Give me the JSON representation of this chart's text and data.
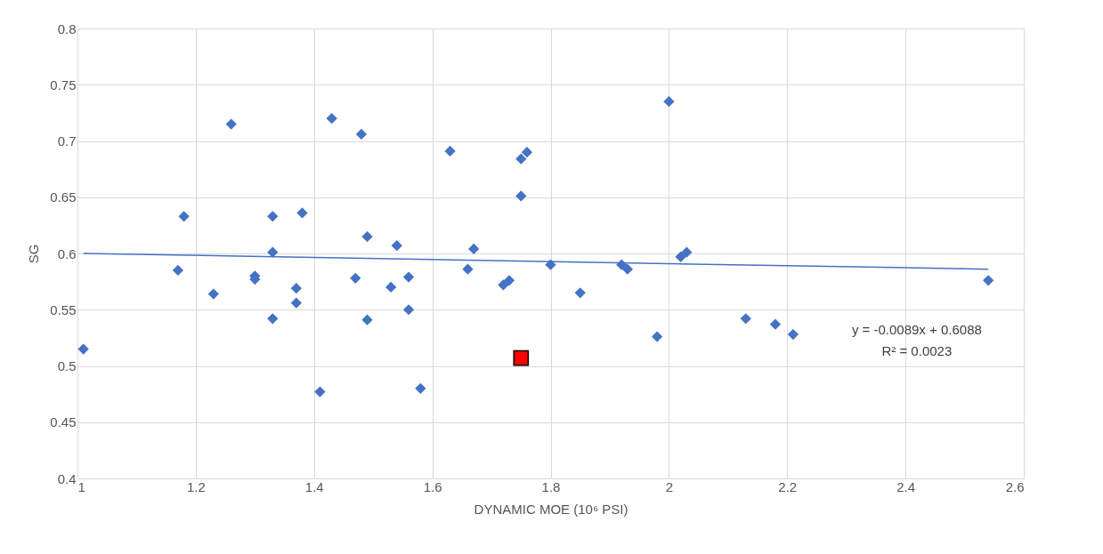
{
  "chart_data": {
    "type": "scatter",
    "xlabel": "DYNAMIC MOE (10⁶ PSI)",
    "ylabel": "SG",
    "xlim": [
      1,
      2.6
    ],
    "xticks": [
      1,
      1.2,
      1.4,
      1.6,
      1.8,
      2,
      2.2,
      2.4,
      2.6
    ],
    "ylim": [
      0.4,
      0.8
    ],
    "yticks": [
      0.4,
      0.45,
      0.5,
      0.55,
      0.6,
      0.65,
      0.7,
      0.75,
      0.8
    ],
    "grid": true,
    "annotations": [
      "y = -0.0089x + 0.6088",
      "R² = 0.0023"
    ],
    "series": [
      {
        "type": "scatter",
        "color": "#4472c4",
        "marker": "diamond",
        "x": [
          1.01,
          1.17,
          1.18,
          1.23,
          1.26,
          1.3,
          1.3,
          1.33,
          1.33,
          1.33,
          1.37,
          1.37,
          1.38,
          1.41,
          1.43,
          1.47,
          1.48,
          1.49,
          1.49,
          1.53,
          1.54,
          1.56,
          1.56,
          1.58,
          1.63,
          1.66,
          1.67,
          1.72,
          1.73,
          1.75,
          1.76,
          1.75,
          1.8,
          1.85,
          1.92,
          1.93,
          1.98,
          2.0,
          2.02,
          2.03,
          2.13,
          2.18,
          2.21,
          2.54
        ],
        "values": [
          0.515,
          0.585,
          0.633,
          0.564,
          0.715,
          0.58,
          0.577,
          0.633,
          0.601,
          0.542,
          0.569,
          0.556,
          0.636,
          0.477,
          0.72,
          0.578,
          0.706,
          0.615,
          0.541,
          0.57,
          0.607,
          0.579,
          0.55,
          0.48,
          0.691,
          0.586,
          0.604,
          0.572,
          0.576,
          0.684,
          0.69,
          0.651,
          0.59,
          0.565,
          0.59,
          0.586,
          0.526,
          0.735,
          0.597,
          0.601,
          0.542,
          0.537,
          0.528,
          0.576
        ]
      },
      {
        "type": "scatter",
        "color": "#ff0000",
        "marker": "square",
        "x": [
          1.75
        ],
        "values": [
          0.507
        ]
      },
      {
        "type": "line",
        "color": "#4472c4",
        "marker": "none",
        "x": [
          1.01,
          2.54
        ],
        "values": [
          0.6,
          0.586
        ]
      }
    ]
  }
}
